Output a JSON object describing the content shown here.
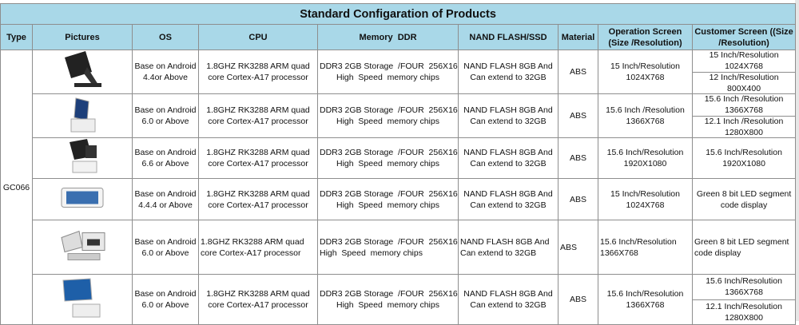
{
  "header": {
    "title": "Standard Configaration of Products"
  },
  "table": {
    "columns": [
      "Type",
      "Pictures",
      "OS",
      "CPU",
      "Memory  DDR",
      "NAND FLASH/SSD",
      "Material",
      "Operation Screen\n(Size /Resolution)",
      "Customer Screen ((Size\n/Resolution)"
    ],
    "type": "GC066",
    "rows": [
      {
        "os": "Base on Android\n4.4or Above",
        "cpu": "1.8GHZ RK3288 ARM quad\ncore Cortex-A17 processor",
        "memory": "DDR3 2GB Storage  /FOUR  256X16\nHigh  Speed  memory chips",
        "nand": "NAND FLASH 8GB And\nCan extend to 32GB",
        "material": "ABS",
        "operation": "15 Inch/Resolution\n1024X768",
        "customer": [
          "15 Inch/Resolution\n1024X768",
          "12 Inch/Resolution\n800X400"
        ]
      },
      {
        "os": "Base on Android\n6.0 or Above",
        "cpu": "1.8GHZ RK3288 ARM quad\ncore Cortex-A17 processor",
        "memory": "DDR3 2GB Storage  /FOUR  256X16\nHigh  Speed  memory chips",
        "nand": "NAND FLASH 8GB And\nCan extend to 32GB",
        "material": "ABS",
        "operation": "15.6 Inch /Resolution\n1366X768",
        "customer": [
          "15.6 Inch /Resolution\n1366X768",
          "12.1 Inch /Resolution\n1280X800"
        ]
      },
      {
        "os": "Base on Android\n6.6 or Above",
        "cpu": "1.8GHZ RK3288 ARM quad\ncore Cortex-A17 processor",
        "memory": "DDR3 2GB Storage  /FOUR  256X16\nHigh  Speed  memory chips",
        "nand": "NAND FLASH 8GB And\nCan extend to 32GB",
        "material": "ABS",
        "operation": "15.6 Inch/Resolution\n1920X1080",
        "customer": [
          "15.6 Inch/Resolution\n1920X1080"
        ]
      },
      {
        "os": "Base on Android\n4.4.4 or Above",
        "cpu": "1.8GHZ RK3288 ARM quad\ncore Cortex-A17 processor",
        "memory": "DDR3 2GB Storage  /FOUR  256X16\nHigh  Speed  memory chips",
        "nand": "NAND FLASH 8GB And\nCan extend to 32GB",
        "material": "ABS",
        "operation": "15 Inch/Resolution\n1024X768",
        "customer": [
          "Green 8 bit LED segment\ncode display"
        ]
      },
      {
        "os": "Base on Android\n6.0 or Above",
        "cpu": "1.8GHZ RK3288 ARM quad\ncore Cortex-A17 processor",
        "memory": "DDR3 2GB Storage  /FOUR  256X16\nHigh  Speed  memory chips",
        "nand": "NAND FLASH 8GB And\nCan extend to 32GB",
        "material": "ABS",
        "operation": "15.6 Inch/Resolution\n1366X768",
        "customer": [
          "Green 8 bit LED segment\ncode display"
        ]
      },
      {
        "os": "Base on Android\n6.0 or Above",
        "cpu": "1.8GHZ RK3288 ARM quad\ncore Cortex-A17 processor",
        "memory": "DDR3 2GB Storage  /FOUR  256X16\nHigh  Speed  memory chips",
        "nand": "NAND FLASH 8GB And\nCan extend to 32GB",
        "material": "ABS",
        "operation": "15.6 Inch/Resolution\n1366X768",
        "customer": [
          "15.6 Inch/Resolution\n1366X768",
          "12.1 Inch/Resolution\n1280X800"
        ]
      }
    ]
  }
}
